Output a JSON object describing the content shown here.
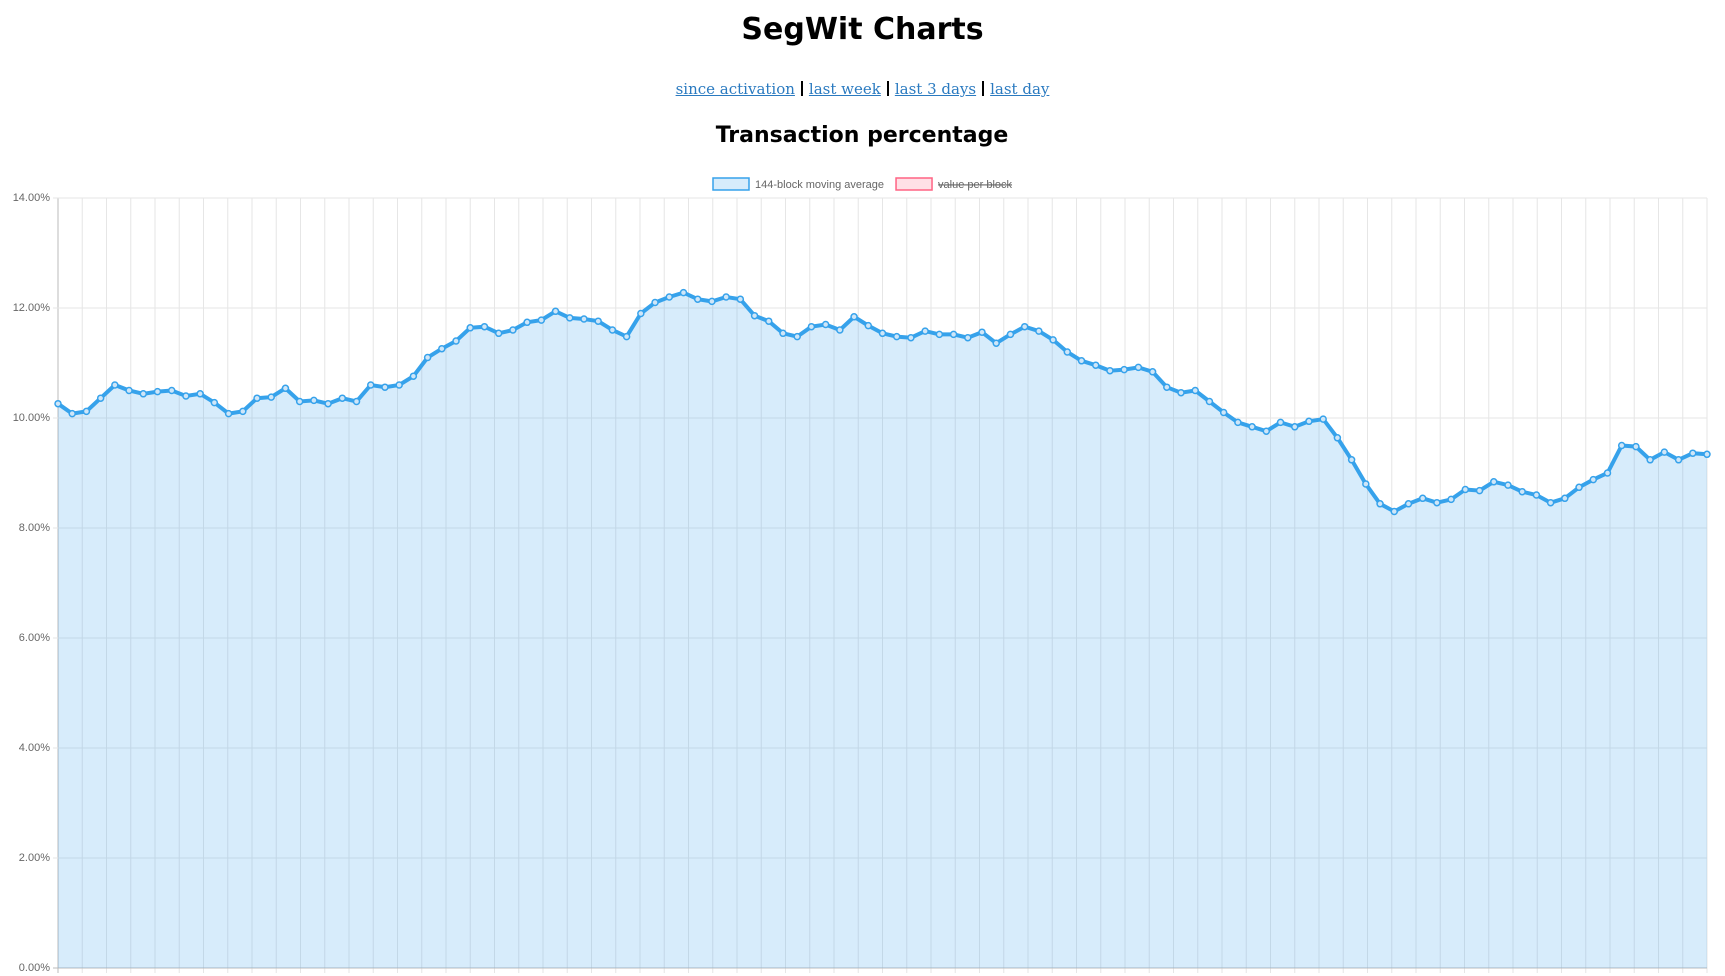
{
  "header": {
    "title": "SegWit Charts",
    "links": [
      "since activation",
      "last week",
      "last 3 days",
      "last day"
    ]
  },
  "chart_data": {
    "type": "area",
    "title": "Transaction percentage",
    "series": [
      {
        "name": "144-block moving average",
        "color": "#36a2eb",
        "values": [
          10.26,
          10.08,
          10.12,
          10.36,
          10.6,
          10.5,
          10.44,
          10.48,
          10.5,
          10.4,
          10.44,
          10.28,
          10.08,
          10.12,
          10.36,
          10.38,
          10.54,
          10.3,
          10.32,
          10.26,
          10.36,
          10.3,
          10.6,
          10.56,
          10.6,
          10.76,
          11.1,
          11.26,
          11.4,
          11.64,
          11.66,
          11.54,
          11.6,
          11.74,
          11.78,
          11.94,
          11.82,
          11.8,
          11.76,
          11.6,
          11.48,
          11.9,
          12.1,
          12.2,
          12.28,
          12.16,
          12.12,
          12.2,
          12.16,
          11.86,
          11.76,
          11.54,
          11.48,
          11.66,
          11.7,
          11.6,
          11.84,
          11.68,
          11.54,
          11.48,
          11.46,
          11.58,
          11.52,
          11.52,
          11.46,
          11.56,
          11.36,
          11.52,
          11.66,
          11.58,
          11.42,
          11.2,
          11.04,
          10.96,
          10.86,
          10.88,
          10.92,
          10.84,
          10.56,
          10.46,
          10.5,
          10.3,
          10.1,
          9.92,
          9.84,
          9.76,
          9.92,
          9.84,
          9.94,
          9.98,
          9.64,
          9.24,
          8.8,
          8.44,
          8.3,
          8.44,
          8.54,
          8.46,
          8.52,
          8.7,
          8.68,
          8.84,
          8.78,
          8.66,
          8.6,
          8.46,
          8.54,
          8.74,
          8.88,
          9.0,
          9.5,
          9.48,
          9.24,
          9.38,
          9.24,
          9.36,
          9.34
        ]
      },
      {
        "name": "value per block",
        "color": "#ff6384",
        "hidden": true
      }
    ],
    "ylim": [
      0,
      14
    ],
    "yticks": [
      {
        "value": 0,
        "label": "0.00%"
      },
      {
        "value": 2,
        "label": "2.00%"
      },
      {
        "value": 4,
        "label": "4.00%"
      },
      {
        "value": 6,
        "label": "6.00%"
      },
      {
        "value": 8,
        "label": "8.00%"
      },
      {
        "value": 10,
        "label": "10.00%"
      },
      {
        "value": 12,
        "label": "12.00%"
      },
      {
        "value": 14,
        "label": "14.00%"
      }
    ],
    "grid": true
  }
}
